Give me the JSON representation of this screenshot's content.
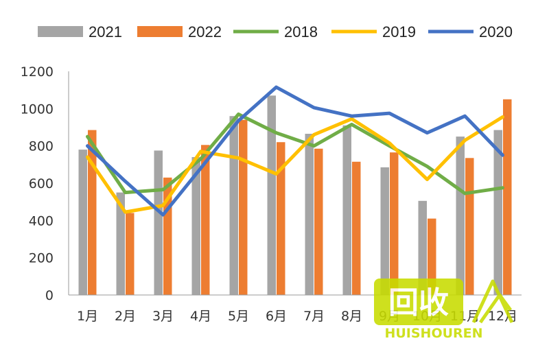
{
  "chart_data": {
    "type": "bar",
    "categories": [
      "1月",
      "2月",
      "3月",
      "4月",
      "5月",
      "6月",
      "7月",
      "8月",
      "9月",
      "10月",
      "11月",
      "12月"
    ],
    "ylim": [
      0,
      1200
    ],
    "yticks": [
      "0",
      "200",
      "400",
      "600",
      "800",
      "1000",
      "1200"
    ],
    "grid": false,
    "legend_position": "top",
    "bar_series": [
      {
        "name": "2021",
        "color": "#a5a5a5",
        "values": [
          780,
          550,
          775,
          740,
          960,
          1070,
          865,
          910,
          685,
          505,
          850,
          885
        ]
      },
      {
        "name": "2022",
        "color": "#ed7d31",
        "values": [
          885,
          440,
          630,
          805,
          940,
          820,
          785,
          715,
          765,
          410,
          735,
          1050
        ]
      }
    ],
    "line_series": [
      {
        "name": "2018",
        "color": "#70ad47",
        "values": [
          850,
          550,
          565,
          730,
          970,
          870,
          800,
          915,
          800,
          690,
          545,
          575
        ]
      },
      {
        "name": "2019",
        "color": "#ffc000",
        "values": [
          740,
          445,
          480,
          770,
          735,
          650,
          860,
          945,
          815,
          620,
          830,
          955
        ]
      },
      {
        "name": "2020",
        "color": "#4472c4",
        "values": [
          800,
          610,
          430,
          680,
          935,
          1115,
          1005,
          960,
          975,
          870,
          960,
          750
        ]
      }
    ],
    "legend_order": [
      "2021",
      "2022",
      "2018",
      "2019",
      "2020"
    ]
  },
  "watermark": {
    "logo_text": "回收",
    "brand_text": "HUISHOUREN",
    "color": "#c8dc00"
  }
}
